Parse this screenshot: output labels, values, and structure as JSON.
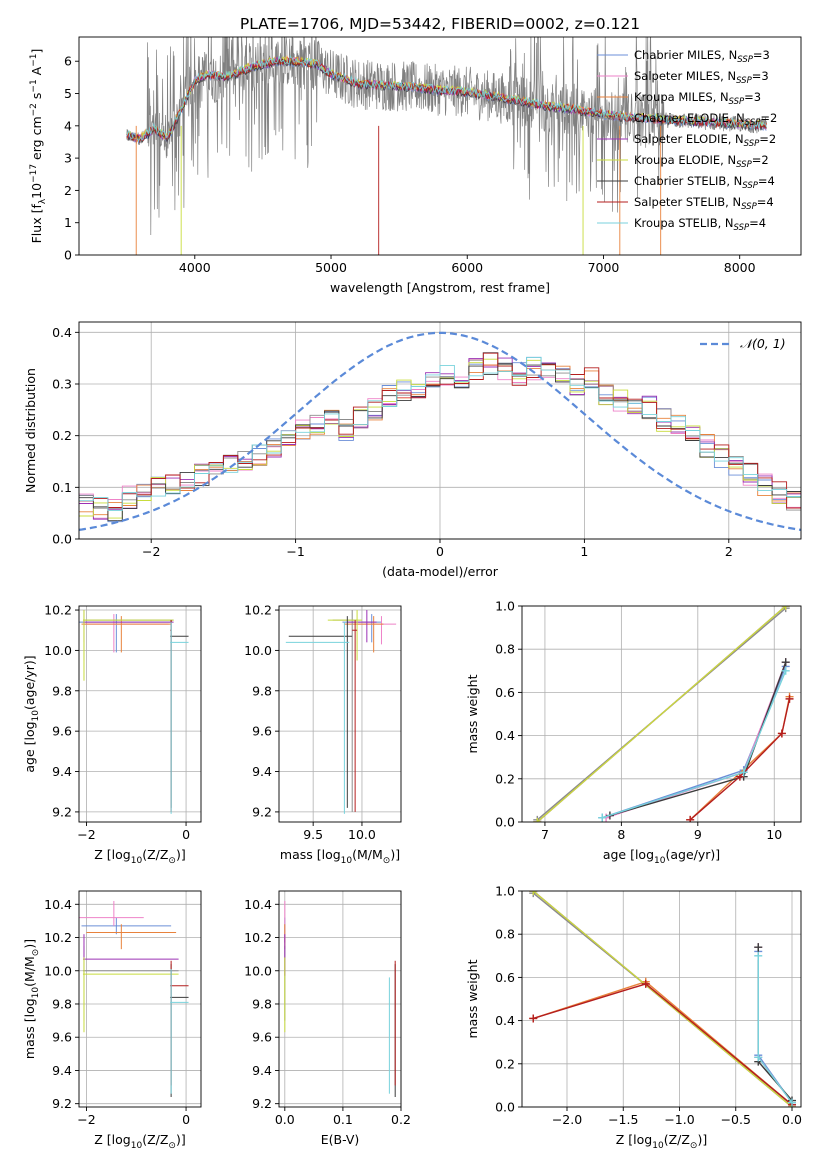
{
  "figure_title": "PLATE=1706, MJD=53442, FIBERID=0002, z=0.121",
  "models": [
    {
      "name": "Chabrier MILES",
      "nssp": "3",
      "color": "#6b8fd8"
    },
    {
      "name": "Salpeter MILES",
      "nssp": "3",
      "color": "#ee82c8"
    },
    {
      "name": "Kroupa MILES",
      "nssp": "3",
      "color": "#e8823c"
    },
    {
      "name": "Chabrier ELODIE",
      "nssp": "2",
      "color": "#8c8c8c"
    },
    {
      "name": "Salpeter ELODIE",
      "nssp": "2",
      "color": "#9b30b4"
    },
    {
      "name": "Kroupa ELODIE",
      "nssp": "2",
      "color": "#c8dc3c"
    },
    {
      "name": "Chabrier STELIB",
      "nssp": "4",
      "color": "#3c3c3c"
    },
    {
      "name": "Salpeter STELIB",
      "nssp": "4",
      "color": "#b41e1e"
    },
    {
      "name": "Kroupa STELIB",
      "nssp": "4",
      "color": "#78d2dc"
    }
  ],
  "chart_data": [
    {
      "type": "line",
      "title": "PLATE=1706, MJD=53442, FIBERID=0002, z=0.121",
      "xlabel": "wavelength [Angstrom, rest frame]",
      "ylabel": "Flux [f_λ 10^-17 erg cm^-2 s^-1 A^-1]",
      "xlim": [
        3150,
        8450
      ],
      "ylim": [
        0,
        6.75
      ],
      "xticks": [
        4000,
        5000,
        6000,
        7000,
        8000
      ],
      "yticks": [
        0,
        1,
        2,
        3,
        4,
        5,
        6
      ],
      "grid": false,
      "legend": "top-right",
      "model_envelope": {
        "x": [
          3500,
          3600,
          3700,
          3800,
          3900,
          4000,
          4100,
          4200,
          4300,
          4400,
          4500,
          4600,
          4700,
          4800,
          4900,
          5000,
          5200,
          5400,
          5600,
          5800,
          6000,
          6200,
          6400,
          6600,
          6800,
          7000,
          7200,
          7400,
          7600,
          7800,
          8000,
          8200
        ],
        "y": [
          3.7,
          3.6,
          3.9,
          3.6,
          4.5,
          5.4,
          5.6,
          5.5,
          5.6,
          5.8,
          5.9,
          6.0,
          6.0,
          5.95,
          5.9,
          5.6,
          5.3,
          5.25,
          5.2,
          5.1,
          5.05,
          4.9,
          4.75,
          4.6,
          4.5,
          4.35,
          4.25,
          4.2,
          4.15,
          4.1,
          4.05,
          4.0
        ]
      },
      "data_range": [
        3500,
        8200
      ]
    },
    {
      "type": "bar",
      "subtype": "step-histogram",
      "xlabel": "(data-model)/error",
      "ylabel": "Normed distribution",
      "xlim": [
        -2.5,
        2.5
      ],
      "ylim": [
        0,
        0.42
      ],
      "xticks": [
        -2,
        -1,
        0,
        1,
        2
      ],
      "yticks": [
        0.0,
        0.1,
        0.2,
        0.3,
        0.4
      ],
      "grid": true,
      "legend": "top-right",
      "reference_curve": {
        "label": "𝒩(0, 1)",
        "mean": 0,
        "sigma": 1,
        "color": "#5b8ad8"
      },
      "bin_width": 0.1,
      "bin_start": -2.5,
      "base_values": [
        0.065,
        0.06,
        0.055,
        0.08,
        0.09,
        0.1,
        0.105,
        0.115,
        0.125,
        0.13,
        0.14,
        0.155,
        0.16,
        0.18,
        0.2,
        0.21,
        0.22,
        0.23,
        0.21,
        0.235,
        0.25,
        0.275,
        0.29,
        0.285,
        0.3,
        0.32,
        0.31,
        0.33,
        0.34,
        0.33,
        0.32,
        0.33,
        0.335,
        0.32,
        0.3,
        0.31,
        0.28,
        0.27,
        0.265,
        0.255,
        0.23,
        0.22,
        0.205,
        0.18,
        0.16,
        0.14,
        0.125,
        0.105,
        0.09,
        0.07
      ]
    },
    {
      "type": "scatter",
      "subtype": "errorbars",
      "xlabel": "Z [log10(Z/Z⊙)]",
      "ylabel": "age  [log10(age/yr)]",
      "xlim": [
        -2.15,
        0.3
      ],
      "ylim": [
        9.15,
        10.22
      ],
      "xticks": [
        -2,
        0
      ],
      "yticks": [
        9.2,
        9.4,
        9.6,
        9.8,
        10.0,
        10.2
      ],
      "grid": true,
      "points": [
        {
          "m": 0,
          "x": -1.4,
          "xerr": [
            0.75,
            1.1
          ],
          "y": 10.14,
          "yerr": [
            0.15,
            0.04
          ]
        },
        {
          "m": 1,
          "x": -1.45,
          "xerr": [
            0.6,
            1.1
          ],
          "y": 10.13,
          "yerr": [
            0.14,
            0.05
          ]
        },
        {
          "m": 2,
          "x": -1.3,
          "xerr": [
            0.8,
            1.0
          ],
          "y": 10.13,
          "yerr": [
            0.14,
            0.04
          ]
        },
        {
          "m": 3,
          "x": -2.05,
          "xerr": [
            0.02,
            1.8
          ],
          "y": 10.15,
          "yerr": [
            0.2,
            0.05
          ]
        },
        {
          "m": 4,
          "x": -2.05,
          "xerr": [
            0.02,
            1.8
          ],
          "y": 10.14,
          "yerr": [
            0.1,
            0.06
          ]
        },
        {
          "m": 5,
          "x": -2.05,
          "xerr": [
            0.02,
            1.8
          ],
          "y": 10.15,
          "yerr": [
            0.3,
            0.05
          ]
        },
        {
          "m": 6,
          "x": -0.3,
          "xerr": [
            0.02,
            0.35
          ],
          "y": 10.07,
          "yerr": [
            0.85,
            0.08
          ]
        },
        {
          "m": 7,
          "x": -0.3,
          "xerr": [
            0.02,
            0.0
          ],
          "y": 10.1,
          "yerr": [
            0.9,
            0.05
          ]
        },
        {
          "m": 8,
          "x": -0.3,
          "xerr": [
            0.02,
            0.35
          ],
          "y": 10.04,
          "yerr": [
            0.85,
            0.1
          ]
        }
      ]
    },
    {
      "type": "scatter",
      "subtype": "errorbars",
      "xlabel": "mass [log10(M/M⊙)]",
      "ylabel": "",
      "xlim": [
        9.15,
        10.4
      ],
      "ylim": [
        9.15,
        10.22
      ],
      "xticks": [
        9.5,
        10.0
      ],
      "yticks": [
        9.2,
        9.4,
        9.6,
        9.8,
        10.0,
        10.2
      ],
      "grid": true,
      "points": [
        {
          "m": 0,
          "x": 10.1,
          "xerr": [
            0.3,
            0.1
          ],
          "y": 10.14,
          "yerr": [
            0.1,
            0.04
          ]
        },
        {
          "m": 1,
          "x": 10.2,
          "xerr": [
            0.25,
            0.15
          ],
          "y": 10.13,
          "yerr": [
            0.1,
            0.04
          ]
        },
        {
          "m": 2,
          "x": 10.12,
          "xerr": [
            0.3,
            0.1
          ],
          "y": 10.13,
          "yerr": [
            0.14,
            0.04
          ]
        },
        {
          "m": 3,
          "x": 9.9,
          "xerr": [
            0.2,
            0.05
          ],
          "y": 10.15,
          "yerr": [
            0.95,
            0.05
          ]
        },
        {
          "m": 4,
          "x": 10.05,
          "xerr": [
            0.2,
            0.1
          ],
          "y": 10.14,
          "yerr": [
            0.1,
            0.06
          ]
        },
        {
          "m": 5,
          "x": 9.95,
          "xerr": [
            0.3,
            0.05
          ],
          "y": 10.15,
          "yerr": [
            0.2,
            0.05
          ]
        },
        {
          "m": 6,
          "x": 9.85,
          "xerr": [
            0.6,
            0.05
          ],
          "y": 10.07,
          "yerr": [
            0.85,
            0.1
          ]
        },
        {
          "m": 7,
          "x": 9.93,
          "xerr": [
            0.03,
            0.02
          ],
          "y": 10.1,
          "yerr": [
            0.9,
            0.05
          ]
        },
        {
          "m": 8,
          "x": 9.82,
          "xerr": [
            0.6,
            0.05
          ],
          "y": 10.04,
          "yerr": [
            0.85,
            0.1
          ]
        }
      ]
    },
    {
      "type": "line",
      "xlabel": "age  [log10(age/yr)]",
      "ylabel": "mass weight",
      "xlim": [
        6.7,
        10.35
      ],
      "ylim": [
        0,
        1.0
      ],
      "xticks": [
        7,
        8,
        9,
        10
      ],
      "yticks": [
        0.0,
        0.2,
        0.4,
        0.6,
        0.8,
        1.0
      ],
      "grid": true,
      "series": [
        {
          "m": 0,
          "x": [
            7.75,
            9.6,
            10.15
          ],
          "y": [
            0.02,
            0.24,
            0.72
          ]
        },
        {
          "m": 1,
          "x": [
            7.8,
            9.6,
            10.15
          ],
          "y": [
            0.02,
            0.23,
            0.74
          ]
        },
        {
          "m": 2,
          "x": [
            8.9,
            10.1,
            10.2
          ],
          "y": [
            0.01,
            0.41,
            0.58
          ]
        },
        {
          "m": 3,
          "x": [
            6.9,
            10.15
          ],
          "y": [
            0.01,
            0.99
          ]
        },
        {
          "m": 4,
          "x": [
            6.9,
            10.15
          ],
          "y": [
            0.0,
            1.0
          ]
        },
        {
          "m": 5,
          "x": [
            6.9,
            10.15
          ],
          "y": [
            0.0,
            1.0
          ]
        },
        {
          "m": 6,
          "x": [
            7.85,
            9.6,
            10.15
          ],
          "y": [
            0.03,
            0.21,
            0.74
          ]
        },
        {
          "m": 7,
          "x": [
            8.9,
            9.55,
            10.1,
            10.2
          ],
          "y": [
            0.01,
            0.21,
            0.41,
            0.57
          ]
        },
        {
          "m": 8,
          "x": [
            7.75,
            9.6,
            10.15
          ],
          "y": [
            0.02,
            0.23,
            0.7
          ]
        }
      ]
    },
    {
      "type": "scatter",
      "subtype": "errorbars",
      "xlabel": "Z [log10(Z/Z⊙)]",
      "ylabel": "mass [log10(M/M⊙)]",
      "xlim": [
        -2.15,
        0.3
      ],
      "ylim": [
        9.18,
        10.48
      ],
      "xticks": [
        -2,
        0
      ],
      "yticks": [
        9.2,
        9.4,
        9.6,
        9.8,
        10.0,
        10.2,
        10.4
      ],
      "grid": true,
      "points": [
        {
          "m": 0,
          "x": -1.4,
          "xerr": [
            0.7,
            1.1
          ],
          "y": 10.27,
          "yerr": [
            0.05,
            0.05
          ]
        },
        {
          "m": 1,
          "x": -1.45,
          "xerr": [
            0.7,
            0.6
          ],
          "y": 10.32,
          "yerr": [
            0.05,
            0.1
          ]
        },
        {
          "m": 2,
          "x": -1.3,
          "xerr": [
            0.7,
            1.1
          ],
          "y": 10.23,
          "yerr": [
            0.1,
            0.05
          ]
        },
        {
          "m": 3,
          "x": -2.05,
          "xerr": [
            0.02,
            1.9
          ],
          "y": 10.0,
          "yerr": [
            0.3,
            0.15
          ]
        },
        {
          "m": 4,
          "x": -2.05,
          "xerr": [
            0.02,
            1.9
          ],
          "y": 10.07,
          "yerr": [
            0.1,
            0.15
          ]
        },
        {
          "m": 5,
          "x": -2.05,
          "xerr": [
            0.02,
            1.9
          ],
          "y": 9.98,
          "yerr": [
            0.35,
            0.1
          ]
        },
        {
          "m": 6,
          "x": -0.3,
          "xerr": [
            0.02,
            0.35
          ],
          "y": 9.84,
          "yerr": [
            0.6,
            0.2
          ]
        },
        {
          "m": 7,
          "x": -0.3,
          "xerr": [
            0.02,
            0.35
          ],
          "y": 9.91,
          "yerr": [
            0.6,
            0.15
          ]
        },
        {
          "m": 8,
          "x": -0.3,
          "xerr": [
            0.02,
            0.35
          ],
          "y": 9.81,
          "yerr": [
            0.55,
            0.2
          ]
        }
      ]
    },
    {
      "type": "scatter",
      "subtype": "errorbars",
      "xlabel": "E(B-V)",
      "ylabel": "",
      "xlim": [
        -0.01,
        0.2
      ],
      "ylim": [
        9.18,
        10.48
      ],
      "xticks": [
        0.0,
        0.1,
        0.2
      ],
      "yticks": [
        9.2,
        9.4,
        9.6,
        9.8,
        10.0,
        10.2,
        10.4
      ],
      "grid": true,
      "points": [
        {
          "m": 0,
          "x": 0.0,
          "y": 10.27,
          "yerr": [
            0.1,
            0.05
          ]
        },
        {
          "m": 1,
          "x": 0.0,
          "y": 10.32,
          "yerr": [
            0.15,
            0.1
          ]
        },
        {
          "m": 2,
          "x": 0.0,
          "y": 10.23,
          "yerr": [
            0.1,
            0.05
          ]
        },
        {
          "m": 3,
          "x": 0.0,
          "y": 10.0,
          "yerr": [
            0.3,
            0.15
          ]
        },
        {
          "m": 4,
          "x": 0.0,
          "y": 10.07,
          "yerr": [
            0.1,
            0.15
          ]
        },
        {
          "m": 5,
          "x": 0.0,
          "y": 9.98,
          "yerr": [
            0.35,
            0.1
          ]
        },
        {
          "m": 6,
          "x": 0.19,
          "y": 9.84,
          "yerr": [
            0.6,
            0.2
          ]
        },
        {
          "m": 7,
          "x": 0.19,
          "y": 9.91,
          "yerr": [
            0.6,
            0.15
          ]
        },
        {
          "m": 8,
          "x": 0.18,
          "y": 9.81,
          "yerr": [
            0.55,
            0.15
          ]
        }
      ]
    },
    {
      "type": "line",
      "xlabel": "Z [log10(Z/Z⊙)]",
      "ylabel": "mass weight",
      "xlim": [
        -2.4,
        0.08
      ],
      "ylim": [
        0,
        1.0
      ],
      "xticks": [
        -2.0,
        -1.5,
        -1.0,
        -0.5,
        0.0
      ],
      "yticks": [
        0.0,
        0.2,
        0.4,
        0.6,
        0.8,
        1.0
      ],
      "grid": true,
      "series": [
        {
          "m": 0,
          "x": [
            -0.3,
            -0.3,
            0.0
          ],
          "y": [
            0.72,
            0.24,
            0.02
          ]
        },
        {
          "m": 1,
          "x": [
            -0.3,
            -0.3,
            0.0
          ],
          "y": [
            0.74,
            0.23,
            0.02
          ]
        },
        {
          "m": 2,
          "x": [
            -2.3,
            -1.3,
            0.0
          ],
          "y": [
            0.41,
            0.58,
            0.01
          ]
        },
        {
          "m": 3,
          "x": [
            -2.3,
            0.0
          ],
          "y": [
            0.99,
            0.01
          ]
        },
        {
          "m": 4,
          "x": [
            -2.3,
            0.0
          ],
          "y": [
            1.0,
            0.0
          ]
        },
        {
          "m": 5,
          "x": [
            -2.3,
            0.0
          ],
          "y": [
            1.0,
            0.0
          ]
        },
        {
          "m": 6,
          "x": [
            -0.3,
            -0.3,
            0.0
          ],
          "y": [
            0.74,
            0.21,
            0.03
          ]
        },
        {
          "m": 7,
          "x": [
            -2.3,
            -1.3,
            0.0
          ],
          "y": [
            0.41,
            0.57,
            0.01
          ]
        },
        {
          "m": 8,
          "x": [
            -0.3,
            -0.3,
            0.0
          ],
          "y": [
            0.7,
            0.23,
            0.02
          ]
        }
      ]
    }
  ]
}
